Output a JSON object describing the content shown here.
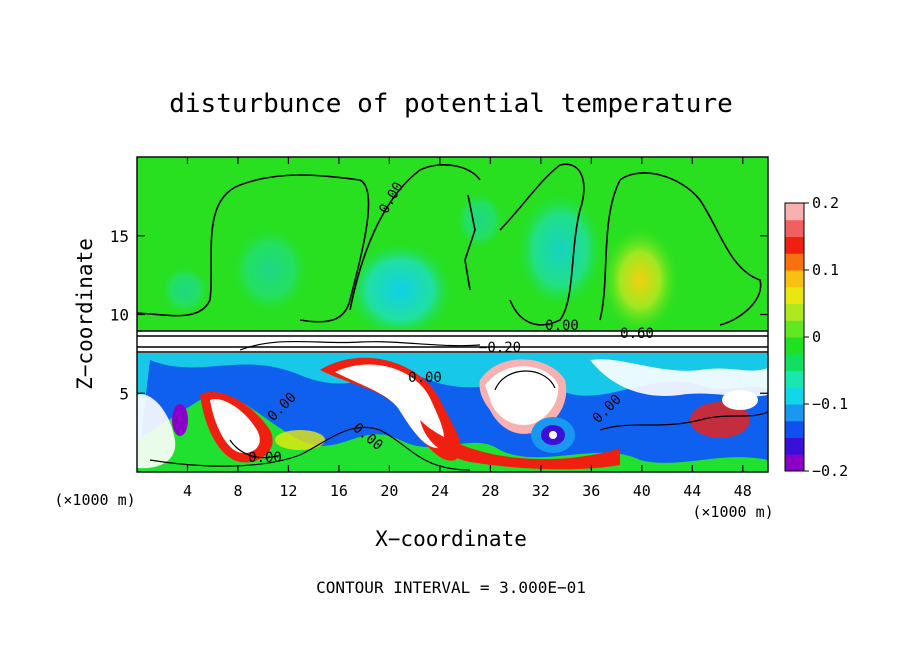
{
  "chart_data": {
    "type": "heatmap",
    "title": "disturbunce of potential temperature",
    "xlabel": "X−coordinate",
    "ylabel": "Z−coordinate",
    "x_unit_left": "(×1000 m)",
    "x_unit_right": "(×1000 m)",
    "xlim": [
      0,
      50
    ],
    "ylim": [
      0,
      20
    ],
    "x_ticks": [
      4,
      8,
      12,
      16,
      20,
      24,
      28,
      32,
      36,
      40,
      44,
      48
    ],
    "y_ticks": [
      5,
      10,
      15
    ],
    "colorbar": {
      "vmin": -0.2,
      "vmax": 0.2,
      "tick_values": [
        0.2,
        0.1,
        0,
        -0.1,
        -0.2
      ],
      "tick_labels": [
        "0.2",
        "0.1",
        "0",
        "−0.1",
        "−0.2"
      ],
      "colors": [
        "#8b00c8",
        "#3a10d8",
        "#1050f0",
        "#1898f0",
        "#10d8e8",
        "#18e8b0",
        "#10e060",
        "#20e020",
        "#60e820",
        "#b0e820",
        "#e8e810",
        "#f8c010",
        "#f87010",
        "#f02010",
        "#f06060",
        "#f8b0b0"
      ]
    },
    "contour_labels": [
      "0.00",
      "0.00",
      "0.60",
      "−0.20",
      "0.00",
      "0.00",
      "0.00",
      "0.00",
      "0.00"
    ],
    "annotation": "CONTOUR INTERVAL = 3.000E−01",
    "grid": false
  }
}
